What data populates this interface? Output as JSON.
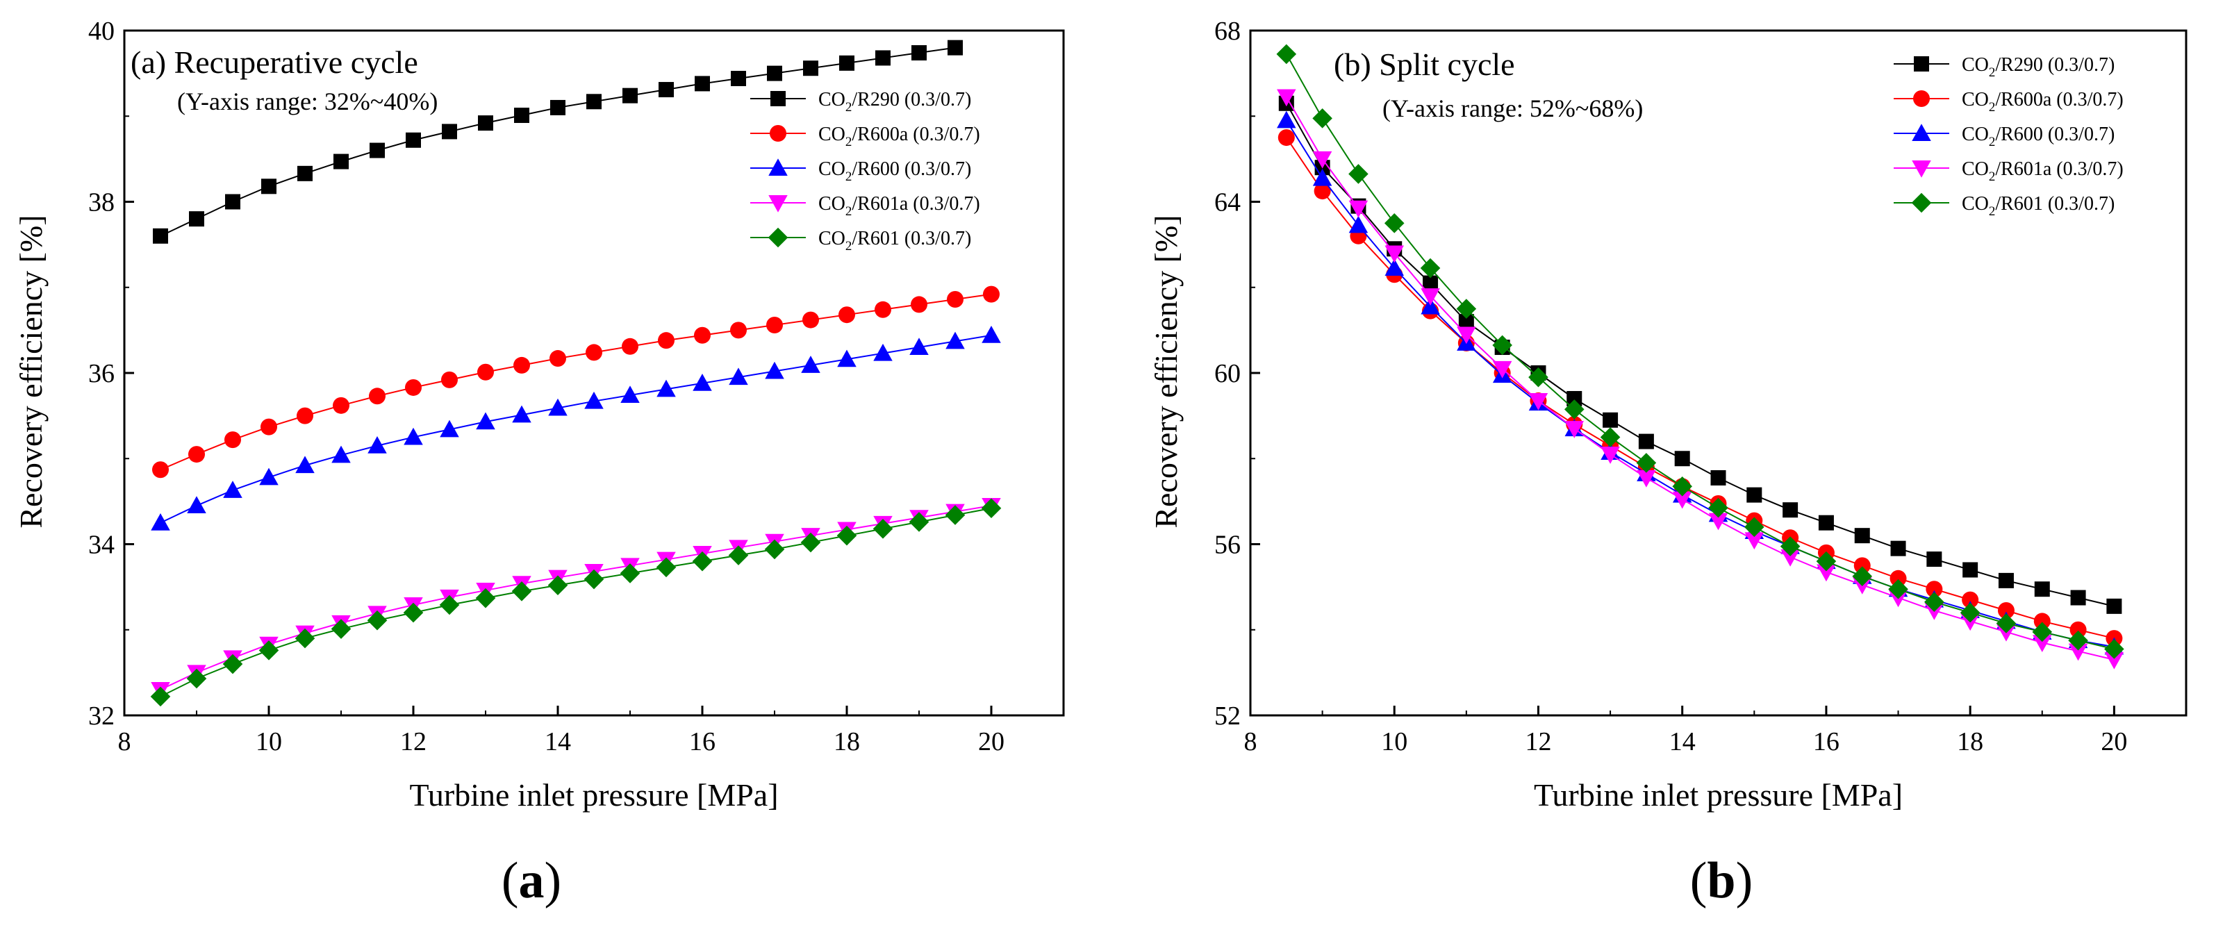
{
  "chart_data": [
    {
      "type": "line",
      "panel_label": "(a)",
      "title": "Recuperative cycle",
      "subtitle": "(Y-axis range: 32%~40%)",
      "caption_letter": "a",
      "xlabel": "Turbine inlet pressure [MPa]",
      "ylabel": "Recovery efficiency [%]",
      "xlim": [
        8,
        21
      ],
      "ylim": [
        32,
        40
      ],
      "xticks": [
        8,
        10,
        12,
        14,
        16,
        18,
        20
      ],
      "yticks": [
        32,
        34,
        36,
        38,
        40
      ],
      "grid": false,
      "legend_position": "top-right",
      "x": [
        8.5,
        9.0,
        9.5,
        10.0,
        10.5,
        11.0,
        11.5,
        12.0,
        12.5,
        13.0,
        13.5,
        14.0,
        14.5,
        15.0,
        15.5,
        16.0,
        16.5,
        17.0,
        17.5,
        18.0,
        18.5,
        19.0,
        19.5,
        20.0
      ],
      "series": [
        {
          "name": "CO2/R290 (0.3/0.7)",
          "name_prefix": "CO",
          "name_sub": "2",
          "name_suffix": "/R290 (0.3/0.7)",
          "color": "#000000",
          "marker": "square",
          "values": [
            37.6,
            37.8,
            38.0,
            38.18,
            38.33,
            38.47,
            38.6,
            38.72,
            38.82,
            38.92,
            39.01,
            39.1,
            39.17,
            39.24,
            39.31,
            39.38,
            39.44,
            39.5,
            39.56,
            39.62,
            39.68,
            39.74,
            39.8,
            null
          ]
        },
        {
          "name": "CO2/R600a (0.3/0.7)",
          "name_prefix": "CO",
          "name_sub": "2",
          "name_suffix": "/R600a (0.3/0.7)",
          "color": "#ff0000",
          "marker": "circle",
          "values": [
            34.87,
            35.05,
            35.22,
            35.37,
            35.5,
            35.62,
            35.73,
            35.83,
            35.92,
            36.01,
            36.09,
            36.17,
            36.24,
            36.31,
            36.38,
            36.44,
            36.5,
            36.56,
            36.62,
            36.68,
            36.74,
            36.8,
            36.86,
            36.92
          ]
        },
        {
          "name": "CO2/R600 (0.3/0.7)",
          "name_prefix": "CO",
          "name_sub": "2",
          "name_suffix": "/R600 (0.3/0.7)",
          "color": "#0000ff",
          "marker": "triangle-up",
          "values": [
            34.25,
            34.45,
            34.63,
            34.78,
            34.92,
            35.04,
            35.15,
            35.25,
            35.34,
            35.43,
            35.51,
            35.59,
            35.67,
            35.74,
            35.81,
            35.88,
            35.95,
            36.02,
            36.09,
            36.16,
            36.23,
            36.3,
            36.37,
            36.44
          ]
        },
        {
          "name": "CO2/R601a (0.3/0.7)",
          "name_prefix": "CO",
          "name_sub": "2",
          "name_suffix": "/R601a (0.3/0.7)",
          "color": "#ff00ff",
          "marker": "triangle-down",
          "values": [
            32.3,
            32.5,
            32.67,
            32.83,
            32.96,
            33.08,
            33.19,
            33.29,
            33.38,
            33.46,
            33.54,
            33.61,
            33.68,
            33.75,
            33.82,
            33.89,
            33.96,
            34.03,
            34.1,
            34.17,
            34.24,
            34.31,
            34.38,
            34.45
          ]
        },
        {
          "name": "CO2/R601 (0.3/0.7)",
          "name_prefix": "CO",
          "name_sub": "2",
          "name_suffix": "/R601 (0.3/0.7)",
          "color": "#008000",
          "marker": "diamond",
          "values": [
            32.22,
            32.43,
            32.6,
            32.76,
            32.9,
            33.01,
            33.11,
            33.2,
            33.29,
            33.37,
            33.45,
            33.52,
            33.59,
            33.66,
            33.73,
            33.8,
            33.87,
            33.94,
            34.02,
            34.1,
            34.18,
            34.26,
            34.34,
            34.42
          ]
        }
      ]
    },
    {
      "type": "line",
      "panel_label": "(b)",
      "title": "Split cycle",
      "subtitle": "(Y-axis range: 52%~68%)",
      "caption_letter": "b",
      "xlabel": "Turbine inlet pressure [MPa]",
      "ylabel": "Recovery efficiency [%]",
      "xlim": [
        8,
        21
      ],
      "ylim": [
        52,
        68
      ],
      "xticks": [
        8,
        10,
        12,
        14,
        16,
        18,
        20
      ],
      "yticks": [
        52,
        56,
        60,
        64,
        68
      ],
      "grid": false,
      "legend_position": "top-right",
      "x": [
        8.5,
        9.0,
        9.5,
        10.0,
        10.5,
        11.0,
        11.5,
        12.0,
        12.5,
        13.0,
        13.5,
        14.0,
        14.5,
        15.0,
        15.5,
        16.0,
        16.5,
        17.0,
        17.5,
        18.0,
        18.5,
        19.0,
        19.5,
        20.0
      ],
      "series": [
        {
          "name": "CO2/R290 (0.3/0.7)",
          "name_prefix": "CO",
          "name_sub": "2",
          "name_suffix": "/R290 (0.3/0.7)",
          "color": "#000000",
          "marker": "square",
          "values": [
            66.3,
            64.8,
            63.9,
            62.9,
            62.1,
            61.2,
            60.6,
            60.0,
            59.4,
            58.9,
            58.4,
            58.0,
            57.55,
            57.15,
            56.8,
            56.5,
            56.2,
            55.9,
            55.65,
            55.4,
            55.15,
            54.95,
            54.75,
            54.55
          ]
        },
        {
          "name": "CO2/R600a (0.3/0.7)",
          "name_prefix": "CO",
          "name_sub": "2",
          "name_suffix": "/R600a (0.3/0.7)",
          "color": "#ff0000",
          "marker": "circle",
          "values": [
            65.5,
            64.25,
            63.2,
            62.3,
            61.45,
            60.7,
            60.0,
            59.35,
            58.8,
            58.3,
            57.8,
            57.35,
            56.95,
            56.55,
            56.15,
            55.8,
            55.5,
            55.2,
            54.95,
            54.7,
            54.45,
            54.2,
            54.0,
            53.8
          ]
        },
        {
          "name": "CO2/R600 (0.3/0.7)",
          "name_prefix": "CO",
          "name_sub": "2",
          "name_suffix": "/R600 (0.3/0.7)",
          "color": "#0000ff",
          "marker": "triangle-up",
          "values": [
            65.9,
            64.55,
            63.45,
            62.45,
            61.55,
            60.7,
            59.95,
            59.3,
            58.7,
            58.15,
            57.65,
            57.15,
            56.7,
            56.3,
            55.95,
            55.6,
            55.25,
            54.95,
            54.7,
            54.45,
            54.2,
            53.95,
            53.75,
            53.6
          ]
        },
        {
          "name": "CO2/R601a (0.3/0.7)",
          "name_prefix": "CO",
          "name_sub": "2",
          "name_suffix": "/R601a (0.3/0.7)",
          "color": "#ff00ff",
          "marker": "triangle-down",
          "values": [
            66.45,
            65.0,
            63.85,
            62.8,
            61.8,
            60.9,
            60.1,
            59.35,
            58.7,
            58.1,
            57.55,
            57.05,
            56.55,
            56.1,
            55.7,
            55.35,
            55.05,
            54.75,
            54.45,
            54.2,
            53.95,
            53.7,
            53.5,
            53.3
          ]
        },
        {
          "name": "CO2/R601 (0.3/0.7)",
          "name_prefix": "CO",
          "name_sub": "2",
          "name_suffix": "/R601 (0.3/0.7)",
          "color": "#008000",
          "marker": "diamond",
          "values": [
            67.45,
            65.95,
            64.65,
            63.5,
            62.45,
            61.5,
            60.65,
            59.9,
            59.15,
            58.5,
            57.9,
            57.35,
            56.85,
            56.4,
            55.95,
            55.6,
            55.25,
            54.95,
            54.65,
            54.4,
            54.15,
            53.95,
            53.75,
            53.55
          ]
        }
      ]
    }
  ]
}
